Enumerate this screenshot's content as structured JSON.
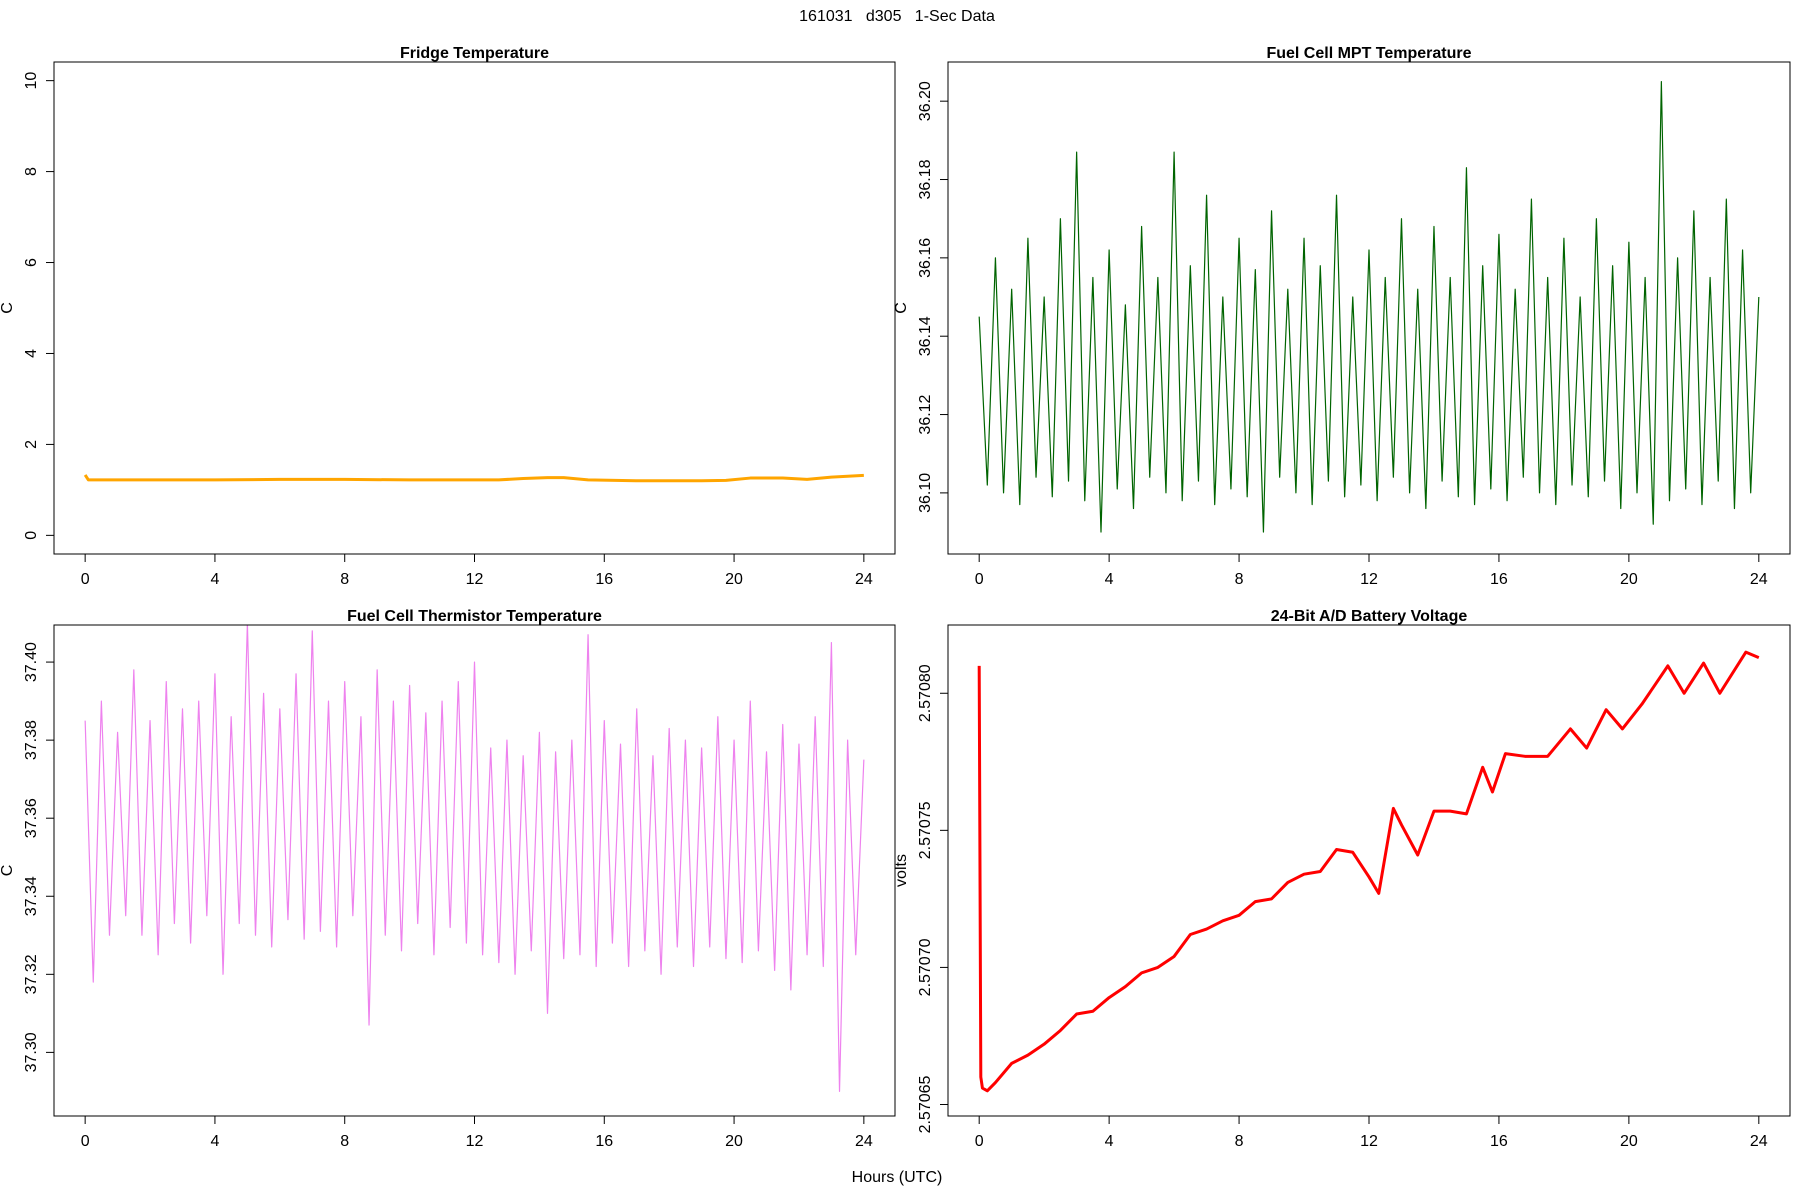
{
  "title": "161031   d305   1-Sec Data",
  "x_label": "Hours (UTC)",
  "chart_data": [
    {
      "type": "line",
      "title": "Fridge Temperature",
      "ylabel": "C",
      "x": [
        0,
        0.1,
        2,
        4,
        6,
        8,
        10,
        12,
        12.75,
        13.5,
        14.25,
        14.75,
        15.5,
        17,
        19,
        19.75,
        20.5,
        21.5,
        22.25,
        23,
        24
      ],
      "series": [
        {
          "color": "#ffa500",
          "values": [
            1.33,
            1.22,
            1.22,
            1.22,
            1.23,
            1.23,
            1.22,
            1.22,
            1.22,
            1.25,
            1.27,
            1.27,
            1.22,
            1.2,
            1.2,
            1.21,
            1.26,
            1.26,
            1.23,
            1.28,
            1.32
          ]
        }
      ],
      "xlim": [
        -0.96,
        24.96
      ],
      "xticks": [
        0,
        4,
        8,
        12,
        16,
        20,
        24
      ],
      "ylim": [
        -0.41,
        10.41
      ],
      "yticks": [
        0,
        2,
        4,
        6,
        8,
        10
      ]
    },
    {
      "type": "line",
      "title": "Fuel Cell MPT Temperature",
      "ylabel": "C",
      "x": [
        0,
        0.25,
        0.5,
        0.75,
        1,
        1.25,
        1.5,
        1.75,
        2,
        2.25,
        2.5,
        2.75,
        3,
        3.25,
        3.5,
        3.75,
        4,
        4.25,
        4.5,
        4.75,
        5,
        5.25,
        5.5,
        5.75,
        6,
        6.25,
        6.5,
        6.75,
        7,
        7.25,
        7.5,
        7.75,
        8,
        8.25,
        8.5,
        8.75,
        9,
        9.25,
        9.5,
        9.75,
        10,
        10.25,
        10.5,
        10.75,
        11,
        11.25,
        11.5,
        11.75,
        12,
        12.25,
        12.5,
        12.75,
        13,
        13.25,
        13.5,
        13.75,
        14,
        14.25,
        14.5,
        14.75,
        15,
        15.25,
        15.5,
        15.75,
        16,
        16.25,
        16.5,
        16.75,
        17,
        17.25,
        17.5,
        17.75,
        18,
        18.25,
        18.5,
        18.75,
        19,
        19.25,
        19.5,
        19.75,
        20,
        20.25,
        20.5,
        20.75,
        21,
        21.25,
        21.5,
        21.75,
        22,
        22.25,
        22.5,
        22.75,
        23,
        23.25,
        23.5,
        23.75,
        24
      ],
      "series": [
        {
          "color": "#006400",
          "values": [
            36.145,
            36.102,
            36.16,
            36.1,
            36.152,
            36.097,
            36.165,
            36.104,
            36.15,
            36.099,
            36.17,
            36.103,
            36.187,
            36.098,
            36.155,
            36.09,
            36.162,
            36.101,
            36.148,
            36.096,
            36.168,
            36.104,
            36.155,
            36.1,
            36.187,
            36.098,
            36.158,
            36.103,
            36.176,
            36.097,
            36.15,
            36.101,
            36.165,
            36.099,
            36.157,
            36.09,
            36.172,
            36.104,
            36.152,
            36.1,
            36.165,
            36.097,
            36.158,
            36.103,
            36.176,
            36.099,
            36.15,
            36.102,
            36.162,
            36.098,
            36.155,
            36.104,
            36.17,
            36.1,
            36.152,
            36.096,
            36.168,
            36.103,
            36.155,
            36.099,
            36.183,
            36.097,
            36.158,
            36.101,
            36.166,
            36.098,
            36.152,
            36.104,
            36.175,
            36.1,
            36.155,
            36.097,
            36.165,
            36.102,
            36.15,
            36.099,
            36.17,
            36.103,
            36.158,
            36.096,
            36.164,
            36.1,
            36.155,
            36.092,
            36.205,
            36.098,
            36.16,
            36.101,
            36.172,
            36.097,
            36.155,
            36.103,
            36.175,
            36.096,
            36.162,
            36.1,
            36.15
          ]
        }
      ],
      "xlim": [
        -0.96,
        24.96
      ],
      "xticks": [
        0,
        4,
        8,
        12,
        16,
        20,
        24
      ],
      "ylim": [
        36.0844,
        36.21
      ],
      "yticks": [
        {
          "value": 36.1,
          "label": "36.10"
        },
        36.12,
        36.14,
        36.16,
        36.18,
        {
          "value": 36.2,
          "label": "36.20"
        }
      ]
    },
    {
      "type": "line",
      "title": "Fuel Cell Thermistor Temperature",
      "ylabel": "C",
      "x": [
        0,
        0.25,
        0.5,
        0.75,
        1,
        1.25,
        1.5,
        1.75,
        2,
        2.25,
        2.5,
        2.75,
        3,
        3.25,
        3.5,
        3.75,
        4,
        4.25,
        4.5,
        4.75,
        5,
        5.25,
        5.5,
        5.75,
        6,
        6.25,
        6.5,
        6.75,
        7,
        7.25,
        7.5,
        7.75,
        8,
        8.25,
        8.5,
        8.75,
        9,
        9.25,
        9.5,
        9.75,
        10,
        10.25,
        10.5,
        10.75,
        11,
        11.25,
        11.5,
        11.75,
        12,
        12.25,
        12.5,
        12.75,
        13,
        13.25,
        13.5,
        13.75,
        14,
        14.25,
        14.5,
        14.75,
        15,
        15.25,
        15.5,
        15.75,
        16,
        16.25,
        16.5,
        16.75,
        17,
        17.25,
        17.5,
        17.75,
        18,
        18.25,
        18.5,
        18.75,
        19,
        19.25,
        19.5,
        19.75,
        20,
        20.25,
        20.5,
        20.75,
        21,
        21.25,
        21.5,
        21.75,
        22,
        22.25,
        22.5,
        22.75,
        23,
        23.25,
        23.5,
        23.75,
        24
      ],
      "series": [
        {
          "color": "#ee82ee",
          "values": [
            37.385,
            37.318,
            37.39,
            37.33,
            37.382,
            37.335,
            37.398,
            37.33,
            37.385,
            37.325,
            37.395,
            37.333,
            37.388,
            37.328,
            37.39,
            37.335,
            37.397,
            37.32,
            37.386,
            37.333,
            37.41,
            37.33,
            37.392,
            37.327,
            37.388,
            37.334,
            37.397,
            37.329,
            37.408,
            37.331,
            37.39,
            37.327,
            37.395,
            37.335,
            37.386,
            37.307,
            37.398,
            37.33,
            37.39,
            37.326,
            37.394,
            37.333,
            37.387,
            37.325,
            37.39,
            37.332,
            37.395,
            37.328,
            37.4,
            37.325,
            37.378,
            37.323,
            37.38,
            37.32,
            37.376,
            37.326,
            37.382,
            37.31,
            37.377,
            37.324,
            37.38,
            37.325,
            37.407,
            37.322,
            37.385,
            37.328,
            37.379,
            37.322,
            37.388,
            37.326,
            37.376,
            37.32,
            37.383,
            37.327,
            37.38,
            37.322,
            37.378,
            37.327,
            37.386,
            37.324,
            37.38,
            37.323,
            37.39,
            37.326,
            37.377,
            37.321,
            37.384,
            37.316,
            37.379,
            37.325,
            37.386,
            37.322,
            37.405,
            37.29,
            37.38,
            37.325,
            37.375
          ]
        }
      ],
      "xlim": [
        -0.96,
        24.96
      ],
      "xticks": [
        0,
        4,
        8,
        12,
        16,
        20,
        24
      ],
      "ylim": [
        37.2837,
        37.4095
      ],
      "yticks": [
        {
          "value": 37.3,
          "label": "37.30"
        },
        37.32,
        37.34,
        37.36,
        37.38,
        {
          "value": 37.4,
          "label": "37.40"
        }
      ]
    },
    {
      "type": "line",
      "title": "24-Bit A/D Battery Voltage",
      "ylabel": "volts",
      "x": [
        0,
        0.05,
        0.1,
        0.25,
        0.5,
        1,
        1.5,
        2,
        2.5,
        3,
        3.5,
        4,
        4.5,
        5,
        5.5,
        6,
        6.5,
        7,
        7.5,
        8,
        8.5,
        9,
        9.5,
        10,
        10.5,
        11,
        11.5,
        12,
        12.3,
        12.75,
        13,
        13.5,
        14,
        14.5,
        15,
        15.5,
        15.8,
        16.2,
        16.8,
        17.5,
        18.2,
        18.7,
        19.3,
        19.8,
        20.4,
        21.2,
        21.7,
        22.3,
        22.8,
        23.6,
        24
      ],
      "series": [
        {
          "color": "#ff0000",
          "values": [
            2.57081,
            2.57066,
            2.570656,
            2.570655,
            2.570658,
            2.570665,
            2.570668,
            2.570672,
            2.570677,
            2.570683,
            2.570684,
            2.570689,
            2.570693,
            2.570698,
            2.5707,
            2.570704,
            2.570712,
            2.570714,
            2.570717,
            2.570719,
            2.570724,
            2.570725,
            2.570731,
            2.570734,
            2.570735,
            2.570743,
            2.570742,
            2.570733,
            2.570727,
            2.570758,
            2.570752,
            2.570741,
            2.570757,
            2.570757,
            2.570756,
            2.570773,
            2.570764,
            2.570778,
            2.570777,
            2.570777,
            2.570787,
            2.57078,
            2.570794,
            2.570787,
            2.570796,
            2.57081,
            2.5708,
            2.570811,
            2.5708,
            2.570815,
            2.570813
          ]
        }
      ],
      "xlim": [
        -0.96,
        24.96
      ],
      "xticks": [
        0,
        4,
        8,
        12,
        16,
        20,
        24
      ],
      "ylim": [
        2.5706458,
        2.5708249
      ],
      "yticks": [
        2.57065,
        {
          "value": 2.5707,
          "label": "2.57070"
        },
        2.57075,
        {
          "value": 2.5708,
          "label": "2.57080"
        }
      ]
    }
  ]
}
